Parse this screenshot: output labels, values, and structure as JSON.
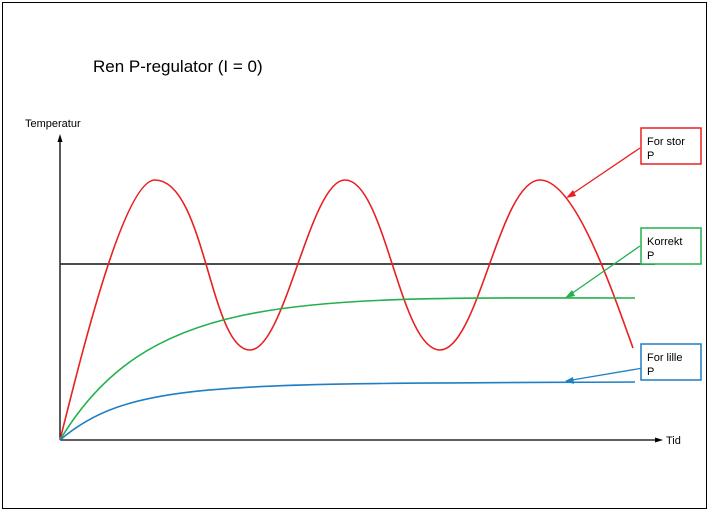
{
  "title": "Ren P-regulator (I = 0)",
  "axes": {
    "y_label": "Temperatur",
    "x_label": "Tid"
  },
  "curves": [
    {
      "name": "for-stor-p",
      "label_line1": "For stor",
      "label_line2": "P",
      "color": "#e82020"
    },
    {
      "name": "korrekt-p",
      "label_line1": "Korrekt",
      "label_line2": "P",
      "color": "#22b14c"
    },
    {
      "name": "for-lille-p",
      "label_line1": "For lille",
      "label_line2": "P",
      "color": "#1f7fc4"
    }
  ],
  "setpoint_color": "#333333"
}
